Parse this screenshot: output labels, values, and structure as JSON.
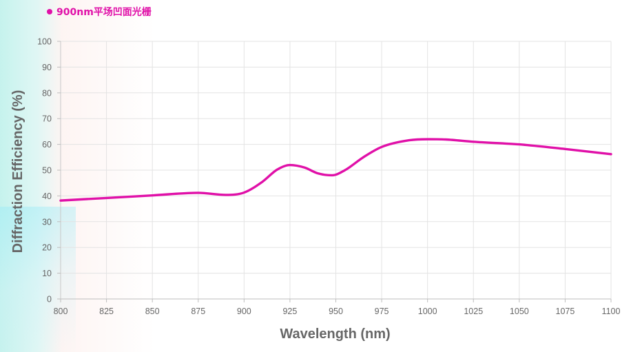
{
  "legend": {
    "label": "900nm平场凹面光栅",
    "color": "#e010a8"
  },
  "chart_data": {
    "type": "line",
    "title": "",
    "xlabel": "Wavelength (nm)",
    "ylabel": "Diffraction Efficiency (%)",
    "xlim": [
      800,
      1100
    ],
    "ylim": [
      0,
      100
    ],
    "x_ticks": [
      800,
      825,
      850,
      875,
      900,
      925,
      950,
      975,
      1000,
      1025,
      1050,
      1075,
      1100
    ],
    "y_ticks": [
      0,
      10,
      20,
      30,
      40,
      50,
      60,
      70,
      80,
      90,
      100
    ],
    "grid": true,
    "legend_position": "top-left",
    "series": [
      {
        "name": "900nm平场凹面光栅",
        "color": "#e010a8",
        "x": [
          800,
          825,
          850,
          875,
          890,
          900,
          910,
          918,
          925,
          933,
          940,
          948,
          955,
          965,
          975,
          990,
          1000,
          1010,
          1025,
          1050,
          1075,
          1100
        ],
        "y": [
          38.2,
          39.2,
          40.2,
          41.2,
          40.4,
          41.3,
          45.5,
          50.2,
          52.0,
          51.0,
          48.8,
          48.0,
          50.0,
          55.0,
          59.0,
          61.6,
          62.0,
          61.9,
          61.0,
          60.0,
          58.2,
          56.2
        ]
      }
    ]
  }
}
